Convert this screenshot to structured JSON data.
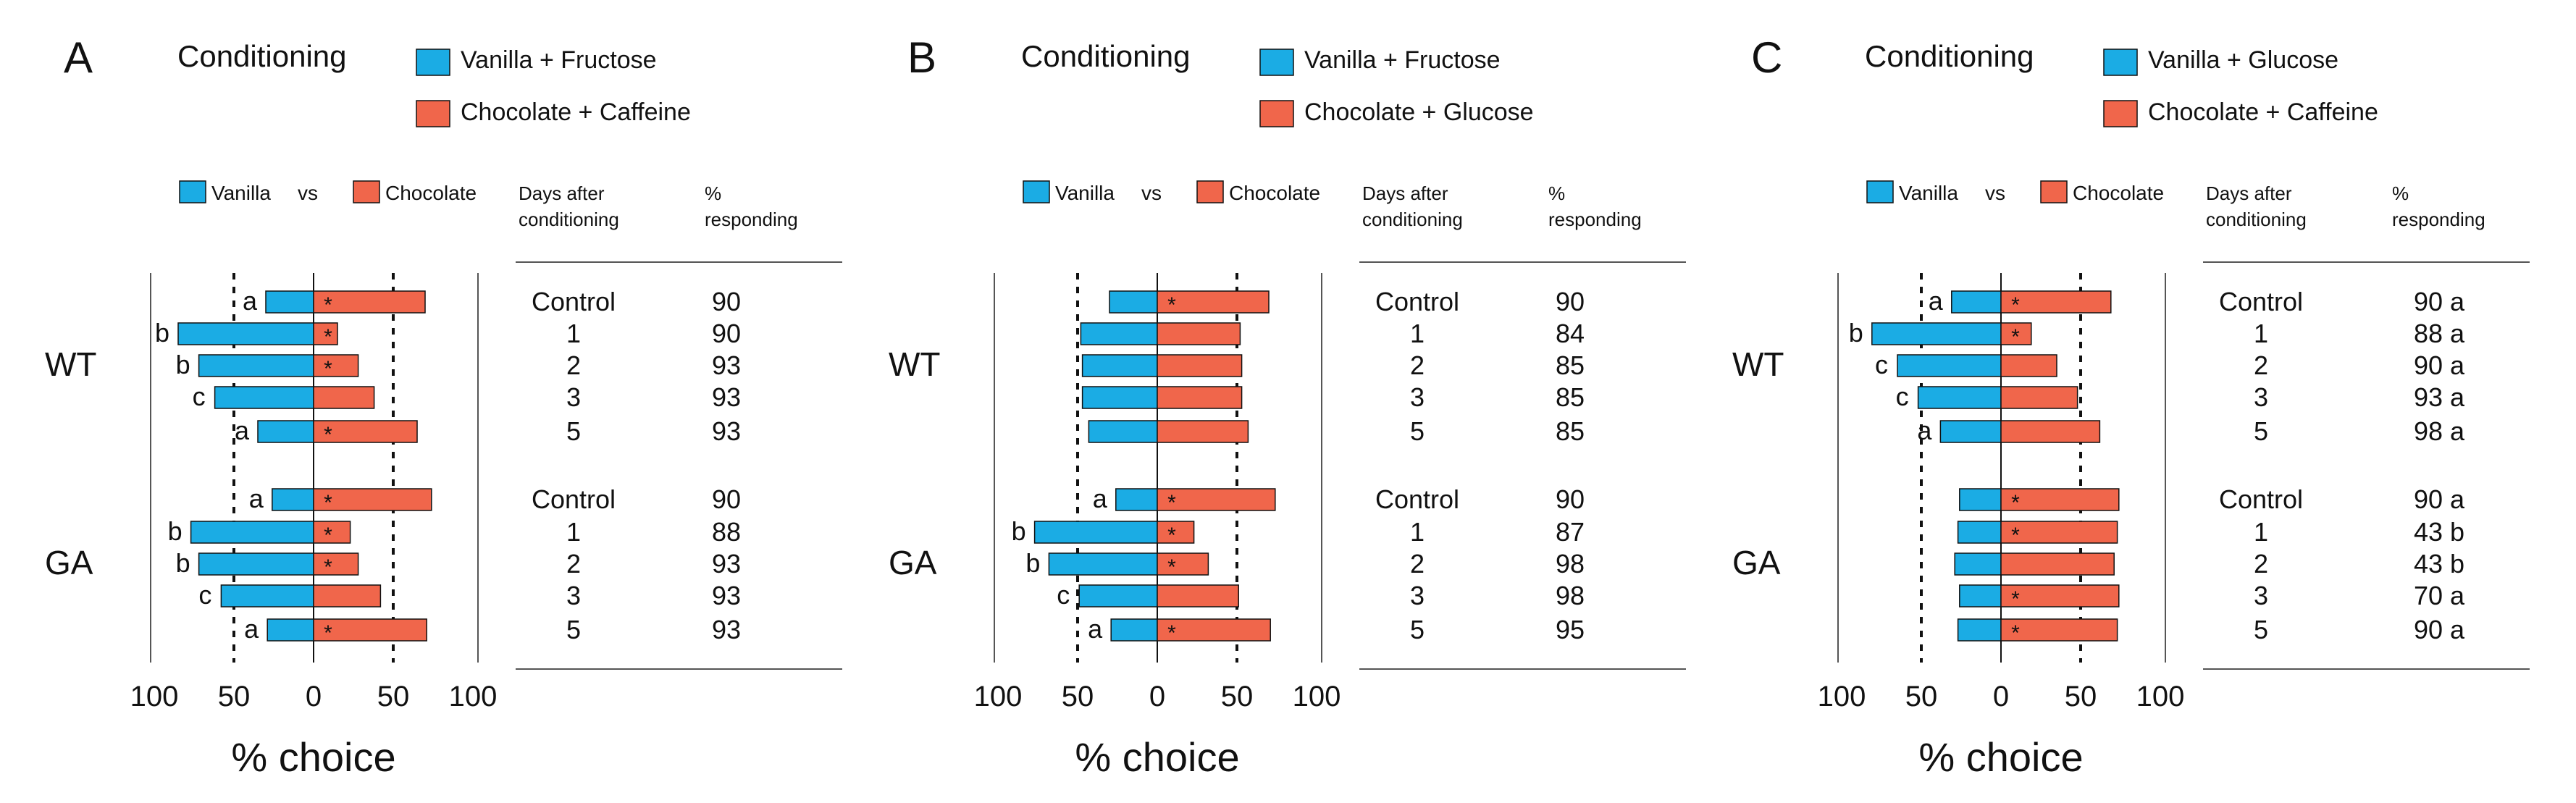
{
  "colors": {
    "vanilla": "#1bace4",
    "chocolate": "#f0664b",
    "ink": "#111111",
    "rule": "#555555"
  },
  "legend_compare": {
    "vanilla": "Vanilla",
    "vs": "vs",
    "chocolate": "Chocolate"
  },
  "table_headers": {
    "days_line1": "Days after",
    "days_line2": "conditioning",
    "pct_line1": "%",
    "pct_line2": "responding"
  },
  "chart_data": [
    {
      "type": "bar",
      "panel": "A",
      "title": "Conditioning",
      "conditioning": [
        "Vanilla + Fructose",
        "Chocolate + Caffeine"
      ],
      "xlabel": "% choice",
      "xticks": [
        "100",
        "50",
        "0",
        "50",
        "100"
      ],
      "xlim": [
        -100,
        100
      ],
      "groups": [
        {
          "name": "WT",
          "rows": [
            {
              "day": "Control",
              "vanilla": 30,
              "chocolate": 70,
              "star": true,
              "letter": "a",
              "pct": "90"
            },
            {
              "day": "1",
              "vanilla": 85,
              "chocolate": 15,
              "star": true,
              "letter": "b",
              "pct": "90"
            },
            {
              "day": "2",
              "vanilla": 72,
              "chocolate": 28,
              "star": true,
              "letter": "b",
              "pct": "93"
            },
            {
              "day": "3",
              "vanilla": 62,
              "chocolate": 38,
              "star": false,
              "letter": "c",
              "pct": "93"
            },
            {
              "day": "5",
              "vanilla": 35,
              "chocolate": 65,
              "star": true,
              "letter": "a",
              "pct": "93"
            }
          ]
        },
        {
          "name": "GA",
          "rows": [
            {
              "day": "Control",
              "vanilla": 26,
              "chocolate": 74,
              "star": true,
              "letter": "a",
              "pct": "90"
            },
            {
              "day": "1",
              "vanilla": 77,
              "chocolate": 23,
              "star": true,
              "letter": "b",
              "pct": "88"
            },
            {
              "day": "2",
              "vanilla": 72,
              "chocolate": 28,
              "star": true,
              "letter": "b",
              "pct": "93"
            },
            {
              "day": "3",
              "vanilla": 58,
              "chocolate": 42,
              "star": false,
              "letter": "c",
              "pct": "93"
            },
            {
              "day": "5",
              "vanilla": 29,
              "chocolate": 71,
              "star": true,
              "letter": "a",
              "pct": "93"
            }
          ]
        }
      ]
    },
    {
      "type": "bar",
      "panel": "B",
      "title": "Conditioning",
      "conditioning": [
        "Vanilla + Fructose",
        "Chocolate + Glucose"
      ],
      "xlabel": "% choice",
      "xticks": [
        "100",
        "50",
        "0",
        "50",
        "100"
      ],
      "xlim": [
        -100,
        100
      ],
      "groups": [
        {
          "name": "WT",
          "rows": [
            {
              "day": "Control",
              "vanilla": 30,
              "chocolate": 70,
              "star": true,
              "letter": "",
              "pct": "90"
            },
            {
              "day": "1",
              "vanilla": 48,
              "chocolate": 52,
              "star": false,
              "letter": "",
              "pct": "84"
            },
            {
              "day": "2",
              "vanilla": 47,
              "chocolate": 53,
              "star": false,
              "letter": "",
              "pct": "85"
            },
            {
              "day": "3",
              "vanilla": 47,
              "chocolate": 53,
              "star": false,
              "letter": "",
              "pct": "85"
            },
            {
              "day": "5",
              "vanilla": 43,
              "chocolate": 57,
              "star": false,
              "letter": "",
              "pct": "85"
            }
          ]
        },
        {
          "name": "GA",
          "rows": [
            {
              "day": "Control",
              "vanilla": 26,
              "chocolate": 74,
              "star": true,
              "letter": "a",
              "pct": "90"
            },
            {
              "day": "1",
              "vanilla": 77,
              "chocolate": 23,
              "star": true,
              "letter": "b",
              "pct": "87"
            },
            {
              "day": "2",
              "vanilla": 68,
              "chocolate": 32,
              "star": true,
              "letter": "b",
              "pct": "98"
            },
            {
              "day": "3",
              "vanilla": 49,
              "chocolate": 51,
              "star": false,
              "letter": "c",
              "pct": "98"
            },
            {
              "day": "5",
              "vanilla": 29,
              "chocolate": 71,
              "star": true,
              "letter": "a",
              "pct": "95"
            }
          ]
        }
      ]
    },
    {
      "type": "bar",
      "panel": "C",
      "title": "Conditioning",
      "conditioning": [
        "Vanilla + Glucose",
        "Chocolate + Caffeine"
      ],
      "xlabel": "% choice",
      "xticks": [
        "100",
        "50",
        "0",
        "50",
        "100"
      ],
      "xlim": [
        -100,
        100
      ],
      "groups": [
        {
          "name": "WT",
          "rows": [
            {
              "day": "Control",
              "vanilla": 31,
              "chocolate": 69,
              "star": true,
              "letter": "a",
              "pct": "90 a"
            },
            {
              "day": "1",
              "vanilla": 81,
              "chocolate": 19,
              "star": true,
              "letter": "b",
              "pct": "88 a"
            },
            {
              "day": "2",
              "vanilla": 65,
              "chocolate": 35,
              "star": false,
              "letter": "c",
              "pct": "90 a"
            },
            {
              "day": "3",
              "vanilla": 52,
              "chocolate": 48,
              "star": false,
              "letter": "c",
              "pct": "93 a"
            },
            {
              "day": "5",
              "vanilla": 38,
              "chocolate": 62,
              "star": false,
              "letter": "a",
              "pct": "98 a"
            }
          ]
        },
        {
          "name": "GA",
          "rows": [
            {
              "day": "Control",
              "vanilla": 26,
              "chocolate": 74,
              "star": true,
              "letter": "",
              "pct": "90 a"
            },
            {
              "day": "1",
              "vanilla": 27,
              "chocolate": 73,
              "star": true,
              "letter": "",
              "pct": "43 b"
            },
            {
              "day": "2",
              "vanilla": 29,
              "chocolate": 71,
              "star": false,
              "letter": "",
              "pct": "43 b"
            },
            {
              "day": "3",
              "vanilla": 26,
              "chocolate": 74,
              "star": true,
              "letter": "",
              "pct": "70 a"
            },
            {
              "day": "5",
              "vanilla": 27,
              "chocolate": 73,
              "star": true,
              "letter": "",
              "pct": "90 a"
            }
          ]
        }
      ]
    }
  ]
}
